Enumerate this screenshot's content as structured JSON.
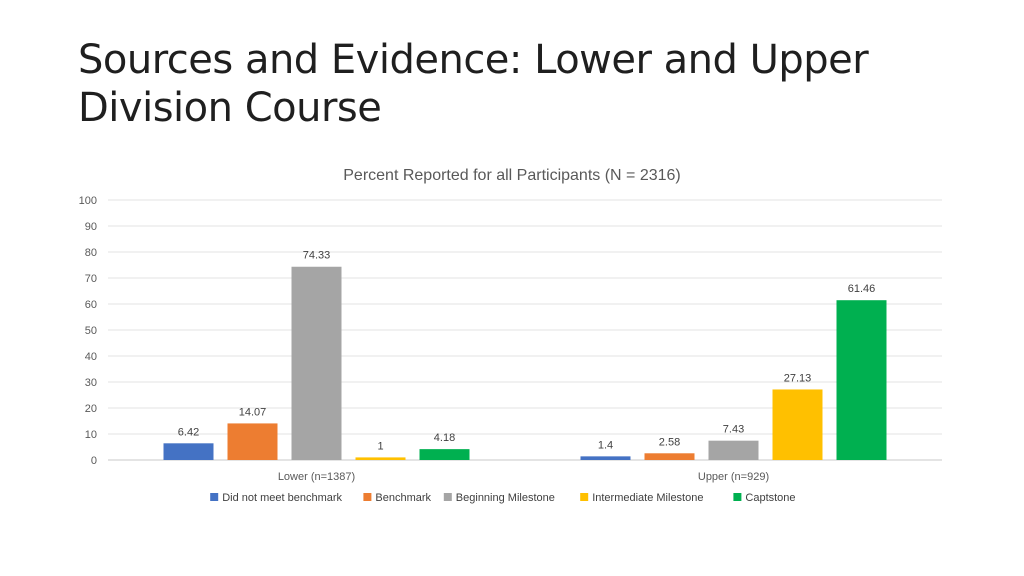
{
  "slide": {
    "title": "Sources and Evidence: Lower and Upper Division Course"
  },
  "chart_data": {
    "type": "bar",
    "title": "Percent Reported for all Participants (N = 2316)",
    "xlabel": "",
    "ylabel": "",
    "ylim": [
      0,
      100
    ],
    "yticks": [
      0,
      10,
      20,
      30,
      40,
      50,
      60,
      70,
      80,
      90,
      100
    ],
    "grid": true,
    "legend_position": "bottom",
    "categories": [
      "Lower (n=1387)",
      "Upper (n=929)"
    ],
    "series": [
      {
        "name": "Did not meet benchmark",
        "color": "#4472C4",
        "values": [
          6.42,
          1.4
        ]
      },
      {
        "name": "Benchmark",
        "color": "#ED7D31",
        "values": [
          14.07,
          2.58
        ]
      },
      {
        "name": "Beginning Milestone",
        "color": "#A5A5A5",
        "values": [
          74.33,
          7.43
        ]
      },
      {
        "name": "Intermediate Milestone",
        "color": "#FFC000",
        "values": [
          1,
          27.13
        ]
      },
      {
        "name": "Captstone",
        "color": "#00B050",
        "values": [
          4.18,
          61.46
        ]
      }
    ]
  }
}
